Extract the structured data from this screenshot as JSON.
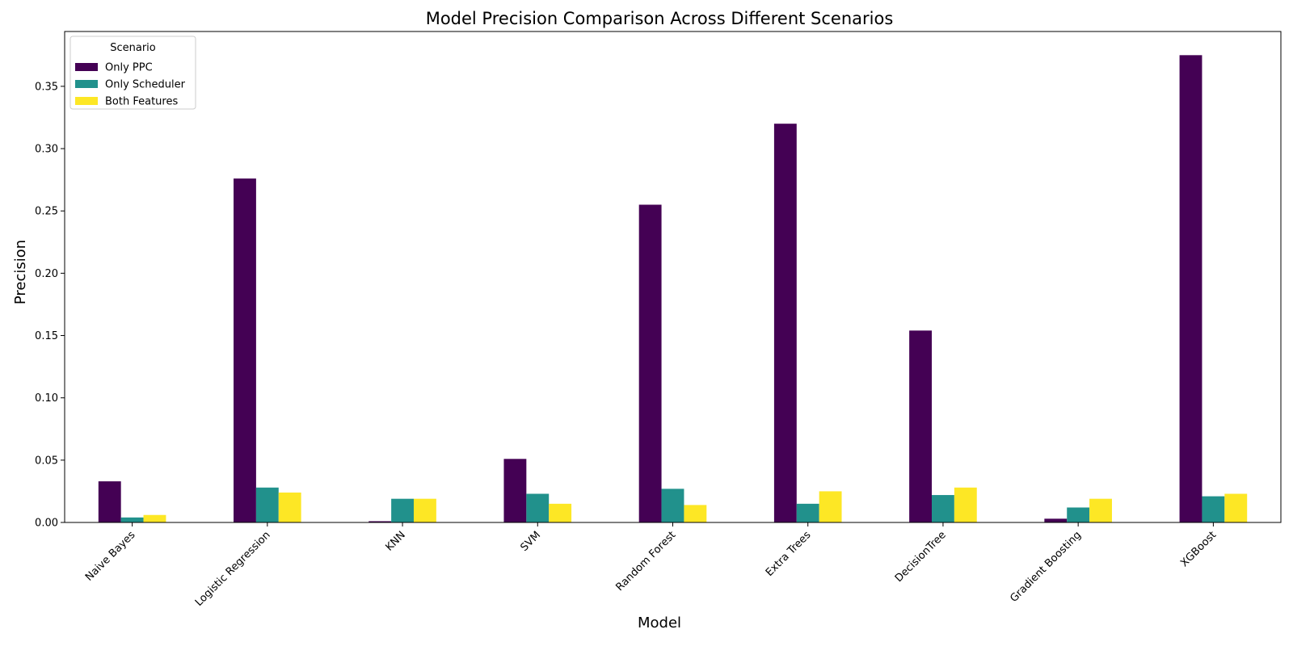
{
  "chart_data": {
    "type": "bar",
    "title": "Model Precision Comparison Across Different Scenarios",
    "xlabel": "Model",
    "ylabel": "Precision",
    "categories": [
      "Naive Bayes",
      "Logistic Regression",
      "KNN",
      "SVM",
      "Random Forest",
      "Extra Trees",
      "DecisionTree",
      "Gradient Boosting",
      "XGBoost"
    ],
    "series": [
      {
        "name": "Only PPC",
        "color": "#440154",
        "values": [
          0.033,
          0.276,
          0.001,
          0.051,
          0.255,
          0.32,
          0.154,
          0.003,
          0.375
        ]
      },
      {
        "name": "Only Scheduler",
        "color": "#21918c",
        "values": [
          0.004,
          0.028,
          0.019,
          0.023,
          0.027,
          0.015,
          0.022,
          0.012,
          0.021
        ]
      },
      {
        "name": "Both Features",
        "color": "#fde725",
        "values": [
          0.006,
          0.024,
          0.019,
          0.015,
          0.014,
          0.025,
          0.028,
          0.019,
          0.023
        ]
      }
    ],
    "ylim": [
      0,
      0.394
    ],
    "yticks": [
      "0.00",
      "0.05",
      "0.10",
      "0.15",
      "0.20",
      "0.25",
      "0.30",
      "0.35"
    ],
    "legend": {
      "title": "Scenario",
      "position": "top-left"
    },
    "grid": false
  }
}
